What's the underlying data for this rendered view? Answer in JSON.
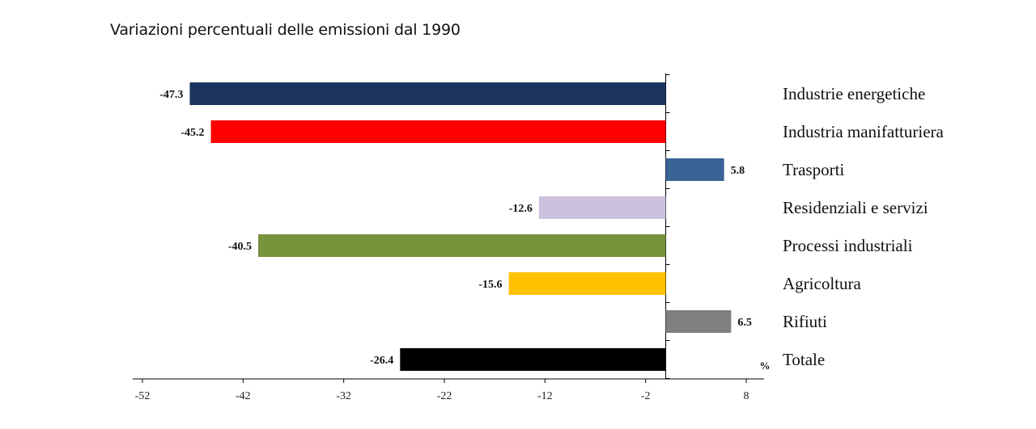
{
  "header": {
    "title": "Variazioni percentuali delle emissioni dal 1990"
  },
  "chart_data": {
    "type": "bar",
    "orientation": "horizontal",
    "categories": [
      "Industrie energetiche",
      "Industria manifatturiera",
      "Trasporti",
      "Residenziali e servizi",
      "Processi industriali",
      "Agricoltura",
      "Rifiuti",
      "Totale"
    ],
    "values": [
      -47.3,
      -45.2,
      5.8,
      -12.6,
      -40.5,
      -15.6,
      6.5,
      -26.4
    ],
    "value_labels": [
      "-47.3",
      "-45.2",
      "5.8",
      "-12.6",
      "-40.5",
      "-15.6",
      "6.5",
      "-26.4"
    ],
    "colors": [
      "#1c3560",
      "#ff0000",
      "#3b6296",
      "#cbc0de",
      "#77933c",
      "#ffc000",
      "#7f7f7f",
      "#000000"
    ],
    "unit": "%",
    "xlim": [
      -52,
      8
    ],
    "xticks": [
      -52,
      -42,
      -32,
      -22,
      -12,
      -2,
      8
    ],
    "xtick_labels": [
      "-52",
      "-42",
      "-32",
      "-22",
      "-12",
      "-2",
      "8"
    ],
    "baseline": 0,
    "title": "Variazioni percentuali delle emissioni dal 1990",
    "grid": false,
    "legend": "none"
  }
}
